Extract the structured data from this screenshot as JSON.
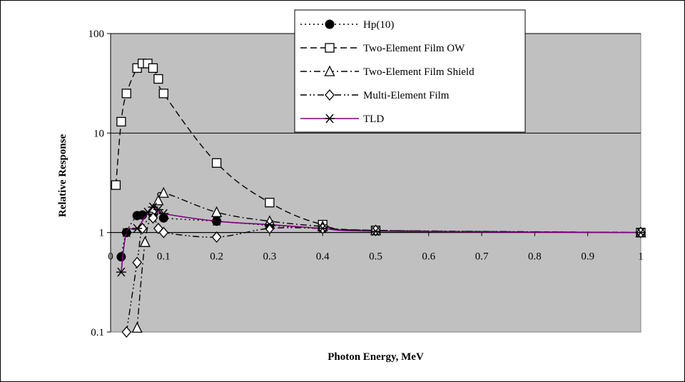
{
  "chart_data": {
    "type": "line",
    "title": "",
    "xlabel": "Photon Energy, MeV",
    "ylabel": "Relative Response",
    "x_scale": "linear",
    "y_scale": "log",
    "xlim": [
      0,
      1
    ],
    "ylim": [
      0.1,
      100
    ],
    "x_ticks": [
      "0",
      "0.1",
      "0.2",
      "0.3",
      "0.4",
      "0.5",
      "0.6",
      "0.7",
      "0.8",
      "0.9",
      "1"
    ],
    "y_ticks": [
      "0.1",
      "1",
      "10",
      "100"
    ],
    "grid": "horizontal major",
    "plot_background": "#c0c0c0",
    "legend_position": "top-right",
    "series": [
      {
        "name": "Hp(10)",
        "color": "#000000",
        "marker": "filled-circle",
        "line": "dotted",
        "x": [
          0.02,
          0.03,
          0.05,
          0.06,
          0.08,
          0.1,
          0.2,
          0.3,
          0.4,
          0.5,
          1.0
        ],
        "y": [
          0.57,
          1.0,
          1.48,
          1.5,
          1.52,
          1.4,
          1.3,
          1.18,
          1.1,
          1.04,
          1.0
        ]
      },
      {
        "name": "Two-Element Film OW",
        "color": "#000000",
        "marker": "open-square",
        "line": "dashed",
        "x": [
          0.01,
          0.02,
          0.03,
          0.05,
          0.06,
          0.07,
          0.08,
          0.09,
          0.1,
          0.2,
          0.3,
          0.4,
          0.5,
          1.0
        ],
        "y": [
          3,
          13,
          25,
          45,
          50,
          50,
          45,
          35,
          25,
          5,
          2,
          1.2,
          1.05,
          1.0
        ]
      },
      {
        "name": "Two-Element Film Shield",
        "color": "#000000",
        "marker": "open-triangle",
        "line": "dash-dot",
        "x": [
          0.05,
          0.065,
          0.08,
          0.09,
          0.1,
          0.2,
          0.3,
          0.4,
          0.5,
          1.0
        ],
        "y": [
          0.11,
          0.8,
          1.7,
          2.1,
          2.5,
          1.6,
          1.3,
          1.15,
          1.05,
          1.0
        ]
      },
      {
        "name": "Multi-Element Film",
        "color": "#000000",
        "marker": "open-diamond",
        "line": "dash-dot-dot",
        "x": [
          0.03,
          0.05,
          0.06,
          0.08,
          0.09,
          0.1,
          0.2,
          0.3,
          0.4,
          0.5,
          1.0
        ],
        "y": [
          0.1,
          0.5,
          1.1,
          1.4,
          1.1,
          1.0,
          0.9,
          1.1,
          1.1,
          1.05,
          1.0
        ]
      },
      {
        "name": "TLD",
        "color": "#800080",
        "marker": "asterisk",
        "line": "solid",
        "x": [
          0.02,
          0.03,
          0.05,
          0.07,
          0.08,
          0.09,
          0.1,
          0.2,
          0.3,
          0.4,
          0.5,
          1.0
        ],
        "y": [
          0.4,
          1.0,
          1.1,
          1.6,
          1.8,
          1.7,
          1.55,
          1.3,
          1.2,
          1.1,
          1.03,
          1.0
        ]
      }
    ]
  }
}
